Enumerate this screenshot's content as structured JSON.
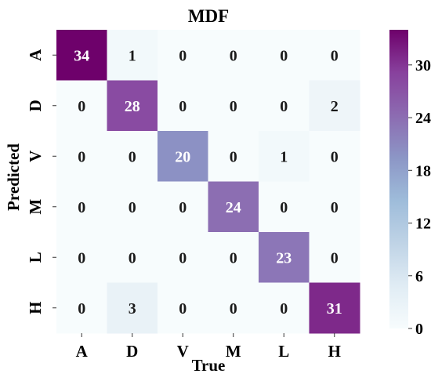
{
  "chart_data": {
    "type": "heatmap",
    "title": "MDF",
    "xlabel": "True",
    "ylabel": "Predicted",
    "x_categories": [
      "A",
      "D",
      "V",
      "M",
      "L",
      "H"
    ],
    "y_categories": [
      "A",
      "D",
      "V",
      "M",
      "L",
      "H"
    ],
    "values": [
      [
        34,
        1,
        0,
        0,
        0,
        0
      ],
      [
        0,
        28,
        0,
        0,
        0,
        2
      ],
      [
        0,
        0,
        20,
        0,
        1,
        0
      ],
      [
        0,
        0,
        0,
        24,
        0,
        0
      ],
      [
        0,
        0,
        0,
        0,
        23,
        0
      ],
      [
        0,
        3,
        0,
        0,
        0,
        31
      ]
    ],
    "colorbar": {
      "min": 0,
      "max": 34,
      "ticks": [
        0,
        6,
        12,
        18,
        24,
        30
      ],
      "colormap": [
        "#f7fcfd",
        "#e0ecf4",
        "#bfd3e6",
        "#9ebcda",
        "#8c96c6",
        "#8c6bb1",
        "#88419d",
        "#6e016b"
      ]
    },
    "annotation_colors": {
      "dark": "#1a1a1a",
      "light": "#ffffff"
    }
  }
}
